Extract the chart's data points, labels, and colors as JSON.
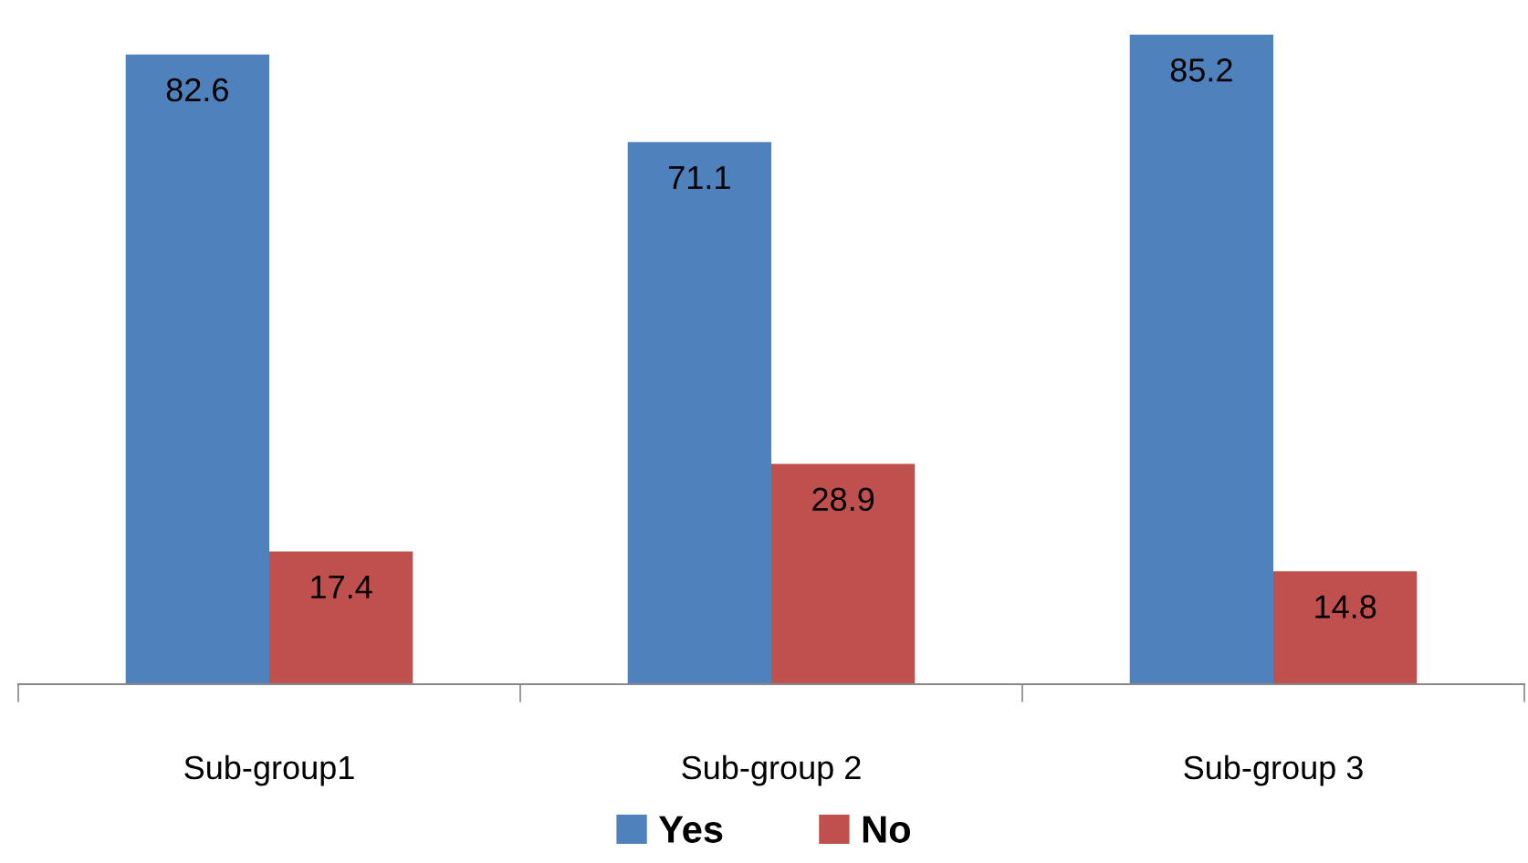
{
  "chart_data": {
    "type": "bar",
    "categories": [
      "Sub-group1",
      "Sub-group 2",
      "Sub-group 3"
    ],
    "series": [
      {
        "name": "Yes",
        "color": "#4f81bd",
        "values": [
          82.6,
          71.1,
          85.2
        ]
      },
      {
        "name": "No",
        "color": "#c0504d",
        "values": [
          17.4,
          28.9,
          14.8
        ]
      }
    ],
    "data_labels": true,
    "legend": "bottom",
    "grid": false
  }
}
